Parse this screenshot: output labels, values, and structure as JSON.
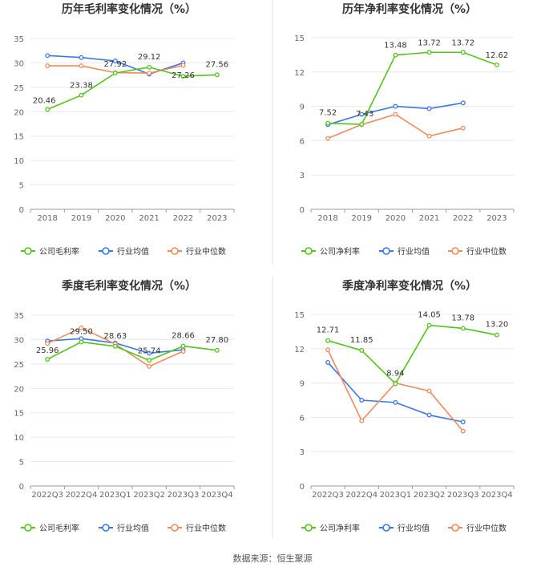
{
  "chart_data": [
    {
      "type": "line",
      "title": "历年毛利率变化情况（%）",
      "categories": [
        "2018",
        "2019",
        "2020",
        "2021",
        "2022",
        "2023"
      ],
      "ylim": [
        0,
        35
      ],
      "yticks": [
        0,
        5,
        10,
        15,
        20,
        25,
        30,
        35
      ],
      "grid": true,
      "legend_position": "bottom",
      "series": [
        {
          "name": "公司毛利率",
          "color": "#52c41a",
          "values": [
            20.46,
            23.38,
            27.92,
            29.12,
            27.26,
            27.56
          ],
          "labels": [
            "20.46",
            "23.38",
            "27.92",
            "29.12",
            "27.26",
            "27.56"
          ]
        },
        {
          "name": "行业均值",
          "color": "#3b78e7",
          "values": [
            31.5,
            31.1,
            30.4,
            27.7,
            30.0,
            null
          ]
        },
        {
          "name": "行业中位数",
          "color": "#f28a5c",
          "values": [
            29.4,
            29.4,
            28.0,
            27.9,
            29.5,
            null
          ]
        }
      ]
    },
    {
      "type": "line",
      "title": "历年净利率变化情况（%）",
      "categories": [
        "2018",
        "2019",
        "2020",
        "2021",
        "2022",
        "2023"
      ],
      "ylim": [
        0,
        15
      ],
      "yticks": [
        0,
        3,
        6,
        9,
        12,
        15
      ],
      "grid": true,
      "legend_position": "bottom",
      "series": [
        {
          "name": "公司净利率",
          "color": "#52c41a",
          "values": [
            7.52,
            7.43,
            13.48,
            13.72,
            13.72,
            12.62
          ],
          "labels": [
            "7.52",
            "7.43",
            "13.48",
            "13.72",
            "13.72",
            "12.62"
          ]
        },
        {
          "name": "行业均值",
          "color": "#3b78e7",
          "values": [
            7.4,
            8.3,
            9.0,
            8.8,
            9.3,
            null
          ]
        },
        {
          "name": "行业中位数",
          "color": "#f28a5c",
          "values": [
            6.2,
            7.4,
            8.3,
            6.4,
            7.1,
            null
          ]
        }
      ]
    },
    {
      "type": "line",
      "title": "季度毛利率变化情况（%）",
      "categories": [
        "2022Q3",
        "2022Q4",
        "2023Q1",
        "2023Q2",
        "2023Q3",
        "2023Q4"
      ],
      "ylim": [
        0,
        35
      ],
      "yticks": [
        0,
        5,
        10,
        15,
        20,
        25,
        30,
        35
      ],
      "grid": true,
      "legend_position": "bottom",
      "series": [
        {
          "name": "公司毛利率",
          "color": "#52c41a",
          "values": [
            25.96,
            29.5,
            28.63,
            25.74,
            28.66,
            27.8
          ],
          "labels": [
            "25.96",
            "29.50",
            "28.63",
            "25.74",
            "28.66",
            "27.80"
          ]
        },
        {
          "name": "行业均值",
          "color": "#3b78e7",
          "values": [
            29.7,
            30.2,
            29.3,
            27.2,
            27.9,
            null
          ]
        },
        {
          "name": "行业中位数",
          "color": "#f28a5c",
          "values": [
            29.2,
            32.4,
            29.1,
            24.5,
            27.6,
            null
          ]
        }
      ]
    },
    {
      "type": "line",
      "title": "季度净利率变化情况（%）",
      "categories": [
        "2022Q3",
        "2022Q4",
        "2023Q1",
        "2023Q2",
        "2023Q3",
        "2023Q4"
      ],
      "ylim": [
        0,
        15
      ],
      "yticks": [
        0,
        3,
        6,
        9,
        12,
        15
      ],
      "grid": true,
      "legend_position": "bottom",
      "series": [
        {
          "name": "公司净利率",
          "color": "#52c41a",
          "values": [
            12.71,
            11.85,
            8.94,
            14.05,
            13.78,
            13.2
          ],
          "labels": [
            "12.71",
            "11.85",
            "8.94",
            "14.05",
            "13.78",
            "13.20"
          ]
        },
        {
          "name": "行业均值",
          "color": "#3b78e7",
          "values": [
            10.8,
            7.5,
            7.3,
            6.2,
            5.6,
            null
          ]
        },
        {
          "name": "行业中位数",
          "color": "#f28a5c",
          "values": [
            11.9,
            5.7,
            9.0,
            8.3,
            4.8,
            null
          ]
        }
      ]
    }
  ],
  "source_text": "数据来源：恒生聚源"
}
